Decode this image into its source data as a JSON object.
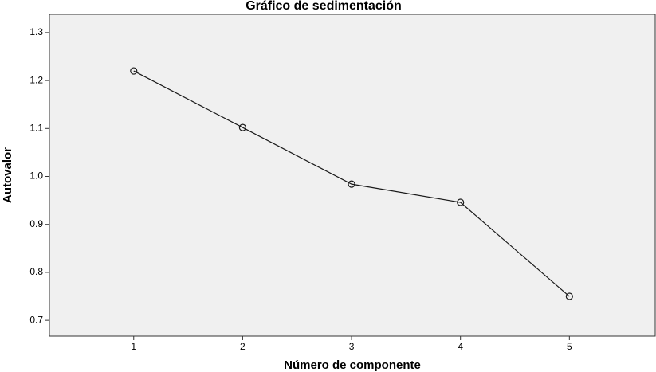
{
  "chart_data": {
    "type": "line",
    "title": "Gráfico de sedimentación",
    "xlabel": "Número de componente",
    "ylabel": "Autovalor",
    "x": [
      1,
      2,
      3,
      4,
      5
    ],
    "series": [
      {
        "name": "Autovalor",
        "color": "#1a1a1a",
        "values": [
          1.22,
          1.102,
          0.984,
          0.946,
          0.75
        ]
      }
    ],
    "xlim": [
      0.226,
      5.788
    ],
    "xticks": [
      1,
      2,
      3,
      4,
      5
    ],
    "ylim": [
      0.667,
      1.338
    ],
    "yticks": [
      0.7,
      0.8,
      0.9,
      {
        "value": 1,
        "label": "1.0"
      },
      1.1,
      1.2,
      1.3
    ],
    "background": "#f0f0f0"
  }
}
